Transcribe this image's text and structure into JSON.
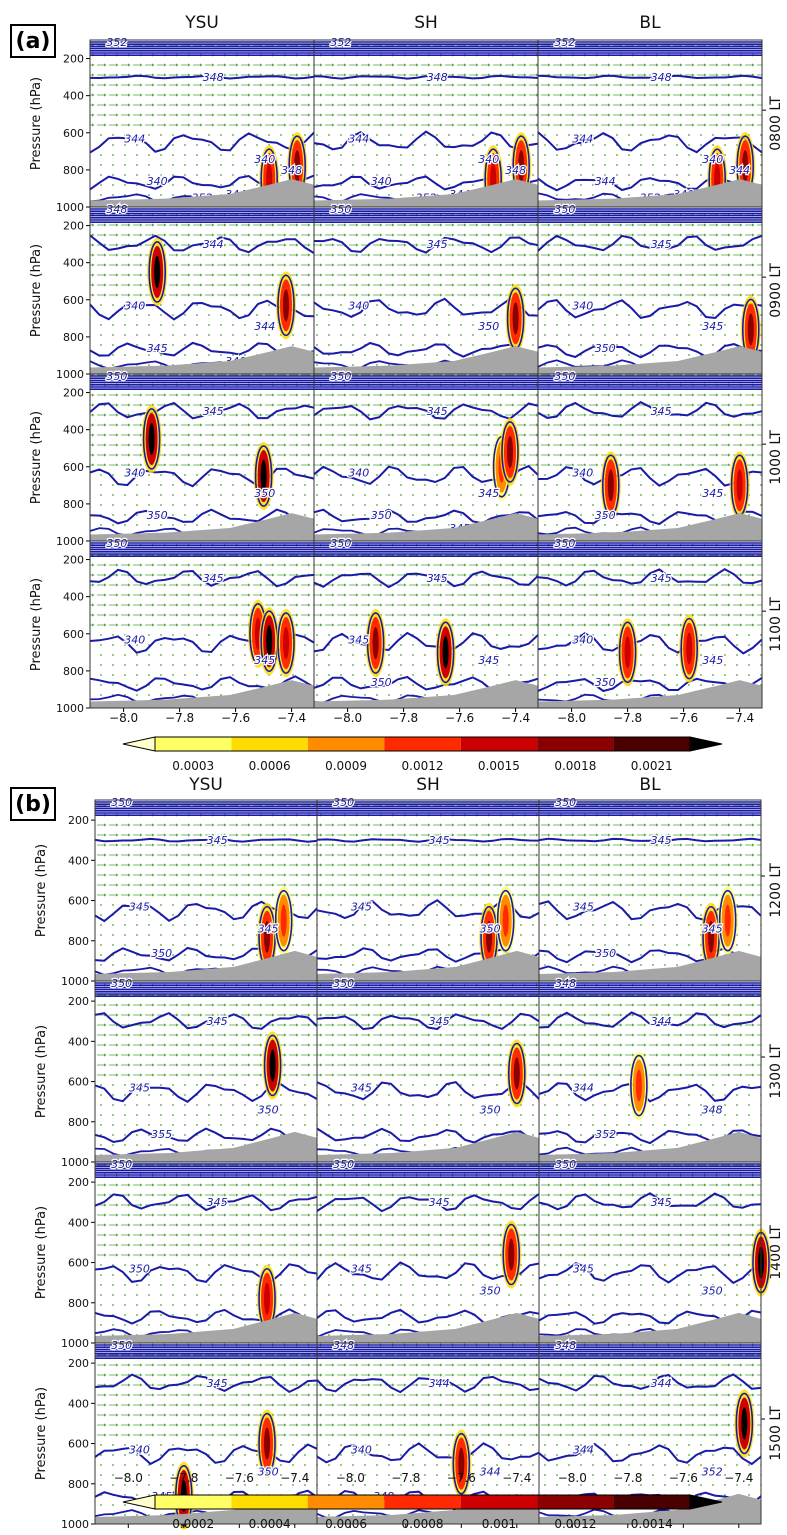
{
  "figure": {
    "yaxis_label": "Pressure (hPa)",
    "columns": [
      "YSU",
      "SH",
      "BL"
    ]
  },
  "chart_data": [
    {
      "panel": "(a)",
      "type": "heatmap",
      "columns": [
        "YSU",
        "SH",
        "BL"
      ],
      "rows": [
        "0800 LT",
        "0900 LT",
        "1000 LT",
        "1100 LT"
      ],
      "ylabel": "Pressure (hPa)",
      "yticks": [
        200,
        400,
        600,
        800,
        1000
      ],
      "ylim": [
        1000,
        100
      ],
      "xticks": [
        -8.0,
        -7.8,
        -7.6,
        -7.4
      ],
      "xlim": [
        -8.12,
        -7.32
      ],
      "colorbar": {
        "ticks": [
          0.0003,
          0.0006,
          0.0009,
          0.0012,
          0.0015,
          0.0018,
          0.0021
        ],
        "extend": "both",
        "colors": [
          "#ffffcc",
          "#ffff66",
          "#ffdd00",
          "#ff8c00",
          "#ff2a00",
          "#cc0000",
          "#8b0000",
          "#4a0000",
          "#000000"
        ]
      },
      "contour_color": "#1a1aa8",
      "contour_labels": [
        [
          "352",
          "348",
          "344",
          "340",
          "340",
          "344",
          "348",
          "352"
        ],
        [
          "352",
          "348",
          "344",
          "340",
          "340",
          "344",
          "348",
          "352"
        ],
        [
          "352",
          "348",
          "344",
          "340",
          "344",
          "340",
          "344",
          "352"
        ]
      ],
      "contour_labels_r1": [
        [
          "348",
          "344",
          "340",
          "344",
          "345",
          "340"
        ],
        [
          "350",
          "345",
          "340",
          "350"
        ],
        [
          "350",
          "345",
          "340",
          "345",
          "350"
        ]
      ],
      "contour_labels_r2": [
        [
          "350",
          "345",
          "340",
          "350",
          "350"
        ],
        [
          "350",
          "345",
          "340",
          "345",
          "350",
          "345"
        ],
        [
          "350",
          "345",
          "340",
          "345",
          "350"
        ]
      ],
      "contour_labels_r3": [
        [
          "350",
          "345",
          "340",
          "345"
        ],
        [
          "350",
          "345",
          "345",
          "345",
          "350"
        ],
        [
          "350",
          "345",
          "340",
          "345",
          "350"
        ]
      ],
      "convection_cores": [
        [
          [
            -7.48,
            850,
            0.0015
          ],
          [
            -7.38,
            780,
            0.0018
          ]
        ],
        [
          [
            -7.88,
            450,
            0.0021
          ],
          [
            -7.4,
            700,
            0.0018
          ],
          [
            -7.36,
            760,
            0.0018
          ],
          [
            -7.42,
            630,
            0.0018
          ]
        ],
        [
          [
            -7.5,
            650,
            0.0021
          ],
          [
            -7.45,
            600,
            0.0012
          ],
          [
            -7.4,
            700,
            0.0015
          ],
          [
            -7.9,
            450,
            0.0021
          ],
          [
            -7.42,
            520,
            0.0018
          ],
          [
            -7.86,
            700,
            0.0018
          ]
        ],
        [
          [
            -7.52,
            600,
            0.0015
          ],
          [
            -7.9,
            650,
            0.0018
          ],
          [
            -7.8,
            700,
            0.0015
          ],
          [
            -7.48,
            640,
            0.0021
          ],
          [
            -7.65,
            700,
            0.0021
          ],
          [
            -7.58,
            680,
            0.0015
          ],
          [
            -7.42,
            650,
            0.0015
          ]
        ]
      ]
    },
    {
      "panel": "(b)",
      "type": "heatmap",
      "columns": [
        "YSU",
        "SH",
        "BL"
      ],
      "rows": [
        "1200 LT",
        "1300 LT",
        "1400 LT",
        "1500 LT"
      ],
      "ylabel": "Pressure (hPa)",
      "yticks": [
        200,
        400,
        600,
        800,
        1000
      ],
      "ylim": [
        1000,
        100
      ],
      "xticks": [
        -8.0,
        -7.8,
        -7.6,
        -7.4
      ],
      "xlim": [
        -8.12,
        -7.32
      ],
      "colorbar": {
        "ticks": [
          0.0002,
          0.0004,
          0.0006,
          0.0008,
          0.001,
          0.0012,
          0.0014
        ],
        "extend": "both",
        "colors": [
          "#ffffcc",
          "#ffff66",
          "#ffdd00",
          "#ff8c00",
          "#ff2a00",
          "#cc0000",
          "#8b0000",
          "#4a0000",
          "#000000"
        ]
      },
      "contour_color": "#1a1aa8",
      "contour_labels": [
        [
          "350",
          "345",
          "345",
          "345",
          "350"
        ],
        [
          "350",
          "345",
          "345",
          "350"
        ],
        [
          "350",
          "345",
          "345",
          "345",
          "350"
        ]
      ],
      "contour_labels_r1": [
        [
          "350",
          "345",
          "345",
          "350",
          "355"
        ],
        [
          "350",
          "345",
          "345",
          "350"
        ],
        [
          "348",
          "344",
          "344",
          "348",
          "352"
        ]
      ],
      "contour_labels_r2": [
        [
          "350",
          "345",
          "350"
        ],
        [
          "350",
          "345",
          "345",
          "350"
        ],
        [
          "350",
          "345",
          "345",
          "350"
        ]
      ],
      "contour_labels_r3": [
        [
          "350",
          "345",
          "340",
          "350",
          "345"
        ],
        [
          "348",
          "344",
          "340",
          "344",
          "348",
          "352"
        ],
        [
          "348",
          "344",
          "344",
          "352"
        ]
      ],
      "convection_cores": [
        [
          [
            -7.5,
            780,
            0.0012
          ],
          [
            -7.44,
            700,
            0.0008
          ]
        ],
        [
          [
            -7.48,
            520,
            0.0014
          ],
          [
            -7.4,
            560,
            0.0012
          ],
          [
            -7.76,
            620,
            0.0008
          ]
        ],
        [
          [
            -7.5,
            780,
            0.001
          ],
          [
            -7.42,
            560,
            0.0012
          ],
          [
            -7.32,
            600,
            0.0014
          ]
        ],
        [
          [
            -7.8,
            860,
            0.0014
          ],
          [
            -7.6,
            700,
            0.0012
          ],
          [
            -7.38,
            500,
            0.0014
          ],
          [
            -7.5,
            600,
            0.0012
          ]
        ]
      ]
    }
  ]
}
